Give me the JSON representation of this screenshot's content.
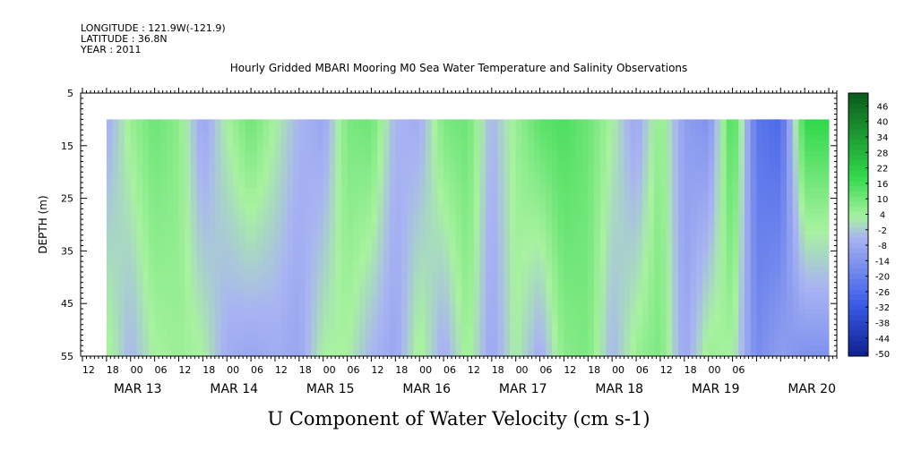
{
  "header": {
    "longitude": "LONGITUDE : 121.9W(-121.9)",
    "latitude": "LATITUDE : 36.8N",
    "year": "YEAR : 2011"
  },
  "chart_data": {
    "type": "heatmap",
    "title": "Hourly Gridded MBARI Mooring M0 Sea Water Temperature and Salinity Observations",
    "xlabel": "U Component of Water Velocity (cm s-1)",
    "ylabel": "DEPTH (m)",
    "y_ticks": [
      "5",
      "15",
      "25",
      "35",
      "45",
      "55"
    ],
    "y_range": [
      5,
      55
    ],
    "y_inverted": true,
    "data_depth_range": [
      10,
      55
    ],
    "x_hour_ticks": [
      "12",
      "18",
      "00",
      "06",
      "12",
      "18",
      "00",
      "06",
      "12",
      "18",
      "00",
      "06",
      "12",
      "18",
      "00",
      "06",
      "12",
      "18",
      "00",
      "06",
      "12",
      "18",
      "00",
      "06",
      "12",
      "18",
      "00",
      "06"
    ],
    "x_day_labels": [
      "MAR 13",
      "MAR 14",
      "MAR 15",
      "MAR 16",
      "MAR 17",
      "MAR 18",
      "MAR 19",
      "MAR 20"
    ],
    "colorbar_ticks": [
      "46",
      "40",
      "34",
      "28",
      "22",
      "16",
      "10",
      "4",
      "-2",
      "-8",
      "-14",
      "-20",
      "-26",
      "-32",
      "-38",
      "-44",
      "-50"
    ],
    "colorbar_range": [
      -50,
      52
    ],
    "colors": {
      "negative_strong": "#0d1f8c",
      "negative_mid": "#3a5be8",
      "negative_light": "#a9b4f2",
      "positive_light": "#a8f2a0",
      "positive_mid": "#2fd84a",
      "positive_strong": "#0a5a1a"
    },
    "column_profiles": [
      {
        "hour": 0,
        "surface": -8,
        "bottom": 2
      },
      {
        "hour": 6,
        "surface": -6,
        "bottom": 6
      },
      {
        "hour": 12,
        "surface": 6,
        "bottom": -4
      },
      {
        "hour": 18,
        "surface": 12,
        "bottom": 4
      },
      {
        "hour": 24,
        "surface": 8,
        "bottom": 6
      },
      {
        "hour": 30,
        "surface": -8,
        "bottom": 4
      },
      {
        "hour": 36,
        "surface": 4,
        "bottom": -6
      },
      {
        "hour": 42,
        "surface": 12,
        "bottom": -8
      },
      {
        "hour": 48,
        "surface": 4,
        "bottom": -6
      },
      {
        "hour": 54,
        "surface": -4,
        "bottom": -8
      },
      {
        "hour": 60,
        "surface": -8,
        "bottom": 4
      },
      {
        "hour": 66,
        "surface": 10,
        "bottom": 4
      },
      {
        "hour": 72,
        "surface": 12,
        "bottom": -4
      },
      {
        "hour": 78,
        "surface": -4,
        "bottom": -8
      },
      {
        "hour": 84,
        "surface": -6,
        "bottom": 6
      },
      {
        "hour": 90,
        "surface": 10,
        "bottom": -6
      },
      {
        "hour": 96,
        "surface": 12,
        "bottom": 6
      },
      {
        "hour": 102,
        "surface": -4,
        "bottom": -8
      },
      {
        "hour": 108,
        "surface": 6,
        "bottom": 4
      },
      {
        "hour": 114,
        "surface": 14,
        "bottom": -6
      },
      {
        "hour": 120,
        "surface": 16,
        "bottom": 8
      },
      {
        "hour": 126,
        "surface": 12,
        "bottom": 10
      },
      {
        "hour": 132,
        "surface": 4,
        "bottom": -4
      },
      {
        "hour": 138,
        "surface": -8,
        "bottom": 6
      },
      {
        "hour": 144,
        "surface": 8,
        "bottom": 10
      },
      {
        "hour": 150,
        "surface": -10,
        "bottom": -8
      },
      {
        "hour": 156,
        "surface": -14,
        "bottom": 6
      },
      {
        "hour": 162,
        "surface": 18,
        "bottom": 4
      },
      {
        "hour": 168,
        "surface": -22,
        "bottom": -16
      },
      {
        "hour": 174,
        "surface": -26,
        "bottom": -10
      },
      {
        "hour": 180,
        "surface": 20,
        "bottom": -14
      }
    ]
  }
}
